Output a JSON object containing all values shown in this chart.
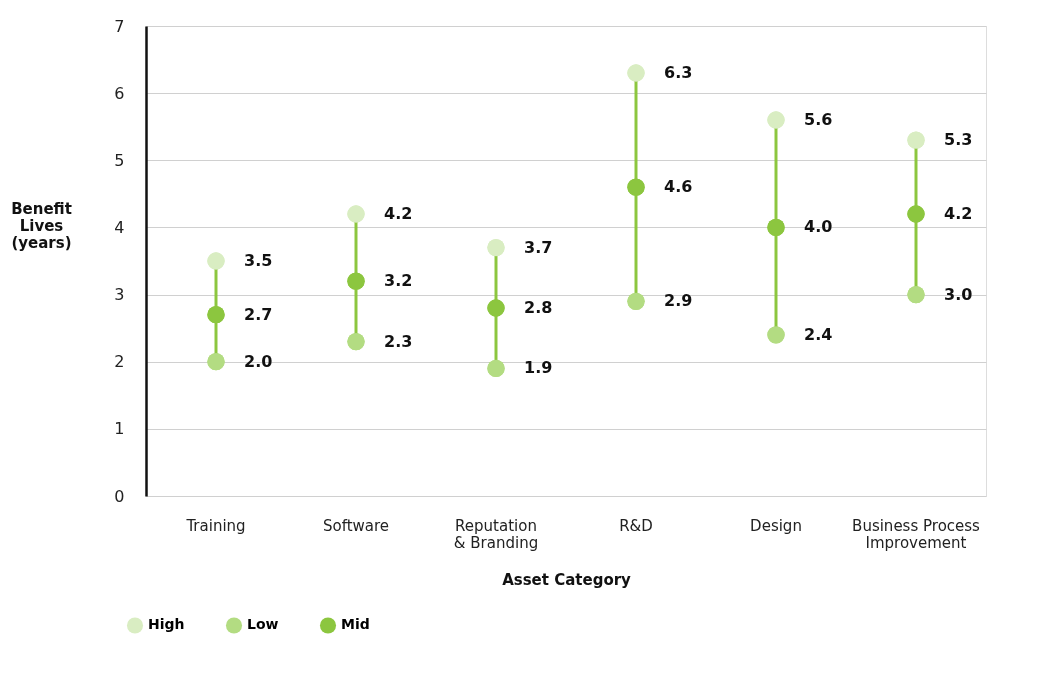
{
  "chart_data": {
    "type": "scatter",
    "xlabel": "Asset Category",
    "ylabel": "Benefit\nLives\n(years)",
    "categories": [
      "Training",
      "Software",
      "Reputation\n& Branding",
      "R&D",
      "Design",
      "Business Process\nImprovement"
    ],
    "series": [
      {
        "name": "High",
        "color": "#d9edc2",
        "values": [
          3.5,
          4.2,
          3.7,
          6.3,
          5.6,
          5.3
        ],
        "value_labels": [
          "3.5",
          "4.2",
          "3.7",
          "6.3",
          "5.6",
          "5.3"
        ]
      },
      {
        "name": "Low",
        "color": "#b3dc82",
        "values": [
          2.0,
          2.3,
          1.9,
          2.9,
          2.4,
          3.0
        ],
        "value_labels": [
          "2.0",
          "2.3",
          "1.9",
          "2.9",
          "2.4",
          "3.0"
        ]
      },
      {
        "name": "Mid",
        "color": "#8cc63f",
        "values": [
          2.7,
          3.2,
          2.8,
          4.6,
          4.0,
          4.2
        ],
        "value_labels": [
          "2.7",
          "3.2",
          "2.8",
          "4.6",
          "4.0",
          "4.2"
        ]
      }
    ],
    "ylim": [
      0,
      7
    ],
    "yticks": [
      0,
      1,
      2,
      3,
      4,
      5,
      6,
      7
    ],
    "grid": "y",
    "legend": "bottom left",
    "marker": "circle"
  }
}
